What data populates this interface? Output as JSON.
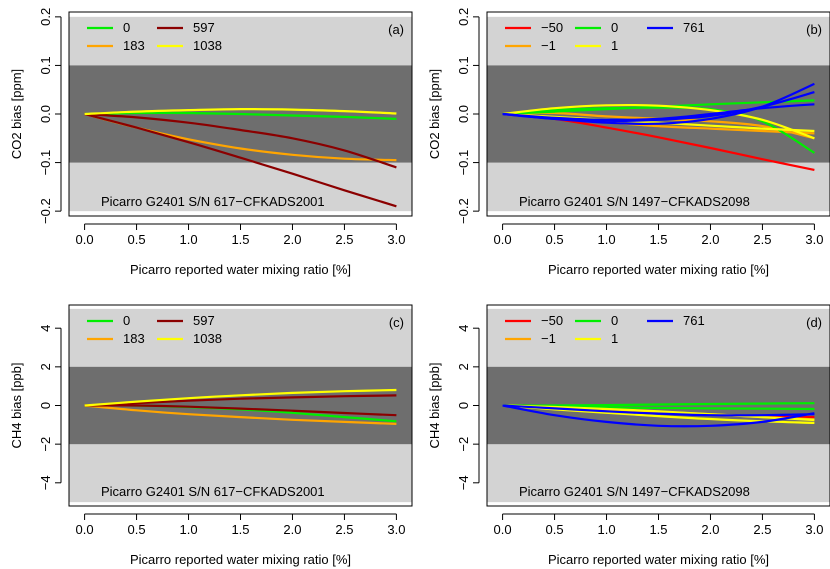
{
  "figure": {
    "panels": [
      {
        "tag": "(a)",
        "ylabel": "CO2 bias [ppm]",
        "xlabel": "Picarro reported water mixing ratio [%]",
        "annotation": "Picarro G2401 S/N 617−CFKADS2001",
        "xticks": [
          "0.0",
          "0.5",
          "1.0",
          "1.5",
          "2.0",
          "2.5",
          "3.0"
        ],
        "yticks": [
          "−0.2",
          "−0.1",
          "0.0",
          "0.1",
          "0.2"
        ],
        "legend": [
          {
            "label": "0",
            "color": "#00ee00"
          },
          {
            "label": "183",
            "color": "#ffa500"
          },
          {
            "label": "597",
            "color": "#8b0000"
          },
          {
            "label": "1038",
            "color": "#ffff00"
          }
        ]
      },
      {
        "tag": "(b)",
        "ylabel": "CO2 bias [ppm]",
        "xlabel": "Picarro reported water mixing ratio [%]",
        "annotation": "Picarro G2401 S/N 1497−CFKADS2098",
        "xticks": [
          "0.0",
          "0.5",
          "1.0",
          "1.5",
          "2.0",
          "2.5",
          "3.0"
        ],
        "yticks": [
          "−0.2",
          "−0.1",
          "0.0",
          "0.1",
          "0.2"
        ],
        "legend": [
          {
            "label": "−50",
            "color": "#ff0000"
          },
          {
            "label": "−1",
            "color": "#ffa500"
          },
          {
            "label": "0",
            "color": "#00ee00"
          },
          {
            "label": "1",
            "color": "#ffff00"
          },
          {
            "label": "761",
            "color": "#0000ff"
          }
        ]
      },
      {
        "tag": "(c)",
        "ylabel": "CH4 bias [ppb]",
        "xlabel": "Picarro reported water mixing ratio [%]",
        "annotation": "Picarro G2401 S/N 617−CFKADS2001",
        "xticks": [
          "0.0",
          "0.5",
          "1.0",
          "1.5",
          "2.0",
          "2.5",
          "3.0"
        ],
        "yticks": [
          "−4",
          "−2",
          "0",
          "2",
          "4"
        ],
        "legend": [
          {
            "label": "0",
            "color": "#00ee00"
          },
          {
            "label": "183",
            "color": "#ffa500"
          },
          {
            "label": "597",
            "color": "#8b0000"
          },
          {
            "label": "1038",
            "color": "#ffff00"
          }
        ]
      },
      {
        "tag": "(d)",
        "ylabel": "CH4 bias [ppb]",
        "xlabel": "Picarro reported water mixing ratio [%]",
        "annotation": "Picarro G2401 S/N 1497−CFKADS2098",
        "xticks": [
          "0.0",
          "0.5",
          "1.0",
          "1.5",
          "2.0",
          "2.5",
          "3.0"
        ],
        "yticks": [
          "−4",
          "−2",
          "0",
          "2",
          "4"
        ],
        "legend": [
          {
            "label": "−50",
            "color": "#ff0000"
          },
          {
            "label": "−1",
            "color": "#ffa500"
          },
          {
            "label": "0",
            "color": "#00ee00"
          },
          {
            "label": "1",
            "color": "#ffff00"
          },
          {
            "label": "761",
            "color": "#0000ff"
          }
        ]
      }
    ]
  },
  "chart_data": [
    {
      "type": "line",
      "panel": "(a)",
      "ylabel": "CO2 bias [ppm]",
      "xlabel": "Picarro reported water mixing ratio [%]",
      "xlim": [
        -0.15,
        3.15
      ],
      "ylim": [
        -0.21,
        0.21
      ],
      "background_bands": {
        "inner": [
          -0.1,
          0.1
        ],
        "outer": [
          -0.2,
          0.2
        ],
        "inner_color": "#6e6e6e",
        "outer_color": "#d3d3d3"
      },
      "x": [
        0,
        0.5,
        1,
        1.5,
        2,
        2.5,
        3
      ],
      "series": [
        {
          "name": "0",
          "color": "#00ee00",
          "values": [
            0,
            0.002,
            0.002,
            0.0,
            -0.003,
            -0.006,
            -0.01
          ]
        },
        {
          "name": "183",
          "color": "#ffa500",
          "values": [
            0,
            -0.028,
            -0.052,
            -0.071,
            -0.084,
            -0.092,
            -0.095
          ]
        },
        {
          "name": "597",
          "color": "#8b0000",
          "values": [
            0,
            -0.028,
            -0.058,
            -0.09,
            -0.123,
            -0.157,
            -0.19
          ]
        },
        {
          "name": "597",
          "color": "#8b0000",
          "values": [
            0,
            -0.007,
            -0.018,
            -0.033,
            -0.05,
            -0.075,
            -0.11
          ]
        },
        {
          "name": "1038",
          "color": "#ffff00",
          "values": [
            0,
            0.005,
            0.008,
            0.01,
            0.009,
            0.006,
            0.001
          ]
        }
      ]
    },
    {
      "type": "line",
      "panel": "(b)",
      "ylabel": "CO2 bias [ppm]",
      "xlabel": "Picarro reported water mixing ratio [%]",
      "xlim": [
        -0.15,
        3.15
      ],
      "ylim": [
        -0.21,
        0.21
      ],
      "background_bands": {
        "inner": [
          -0.1,
          0.1
        ],
        "outer": [
          -0.2,
          0.2
        ],
        "inner_color": "#6e6e6e",
        "outer_color": "#d3d3d3"
      },
      "x": [
        0,
        0.5,
        1,
        1.5,
        2,
        2.5,
        3
      ],
      "series": [
        {
          "name": "−50",
          "color": "#ff0000",
          "values": [
            0,
            -0.01,
            -0.028,
            -0.048,
            -0.07,
            -0.093,
            -0.115
          ]
        },
        {
          "name": "−1",
          "color": "#ffa500",
          "values": [
            0,
            0.002,
            -0.005,
            -0.01,
            -0.015,
            -0.025,
            -0.05
          ]
        },
        {
          "name": "−1",
          "color": "#ffa500",
          "values": [
            0,
            -0.008,
            -0.017,
            -0.025,
            -0.03,
            -0.035,
            -0.04
          ]
        },
        {
          "name": "0",
          "color": "#00ee00",
          "values": [
            0,
            0.008,
            0.012,
            0.013,
            0.01,
            -0.015,
            -0.08
          ]
        },
        {
          "name": "0",
          "color": "#00ee00",
          "values": [
            0,
            0.005,
            0.01,
            0.015,
            0.02,
            0.024,
            0.028
          ]
        },
        {
          "name": "1",
          "color": "#ffff00",
          "values": [
            0,
            0.012,
            0.018,
            0.017,
            0.008,
            -0.012,
            -0.05
          ]
        },
        {
          "name": "1",
          "color": "#ffff00",
          "values": [
            0,
            -0.006,
            -0.012,
            -0.018,
            -0.024,
            -0.03,
            -0.035
          ]
        },
        {
          "name": "761",
          "color": "#0000ff",
          "values": [
            0,
            -0.01,
            -0.018,
            -0.02,
            -0.01,
            0.015,
            0.062
          ]
        },
        {
          "name": "761",
          "color": "#0000ff",
          "values": [
            0,
            -0.01,
            -0.014,
            -0.012,
            -0.004,
            0.015,
            0.045
          ]
        },
        {
          "name": "761",
          "color": "#0000ff",
          "values": [
            0,
            -0.008,
            -0.012,
            -0.01,
            0.0,
            0.012,
            0.02
          ]
        }
      ]
    },
    {
      "type": "line",
      "panel": "(c)",
      "ylabel": "CH4 bias [ppb]",
      "xlabel": "Picarro reported water mixing ratio [%]",
      "xlim": [
        -0.15,
        3.15
      ],
      "ylim": [
        -5.2,
        5.2
      ],
      "background_bands": {
        "inner": [
          -2,
          2
        ],
        "outer": [
          -5,
          5
        ],
        "inner_color": "#6e6e6e",
        "outer_color": "#d3d3d3"
      },
      "x": [
        0,
        0.5,
        1,
        1.5,
        2,
        2.5,
        3
      ],
      "series": [
        {
          "name": "0",
          "color": "#00ee00",
          "values": [
            0,
            0.0,
            -0.08,
            -0.2,
            -0.38,
            -0.6,
            -0.82
          ]
        },
        {
          "name": "183",
          "color": "#ffa500",
          "values": [
            0,
            -0.25,
            -0.45,
            -0.6,
            -0.74,
            -0.85,
            -0.95
          ]
        },
        {
          "name": "597",
          "color": "#8b0000",
          "values": [
            0,
            0.12,
            0.25,
            0.35,
            0.42,
            0.48,
            0.52
          ]
        },
        {
          "name": "597",
          "color": "#8b0000",
          "values": [
            0,
            0.0,
            -0.06,
            -0.16,
            -0.27,
            -0.39,
            -0.5
          ]
        },
        {
          "name": "1038",
          "color": "#ffff00",
          "values": [
            0,
            0.2,
            0.38,
            0.53,
            0.65,
            0.74,
            0.8
          ]
        }
      ]
    },
    {
      "type": "line",
      "panel": "(d)",
      "ylabel": "CH4 bias [ppb]",
      "xlabel": "Picarro reported water mixing ratio [%]",
      "xlim": [
        -0.15,
        3.15
      ],
      "ylim": [
        -5.2,
        5.2
      ],
      "background_bands": {
        "inner": [
          -2,
          2
        ],
        "outer": [
          -5,
          5
        ],
        "inner_color": "#6e6e6e",
        "outer_color": "#d3d3d3"
      },
      "x": [
        0,
        0.5,
        1,
        1.5,
        2,
        2.5,
        3
      ],
      "series": [
        {
          "name": "−50",
          "color": "#ff0000",
          "values": [
            0,
            -0.12,
            -0.26,
            -0.38,
            -0.48,
            -0.56,
            -0.6
          ]
        },
        {
          "name": "−1",
          "color": "#ffa500",
          "values": [
            0,
            -0.1,
            -0.2,
            -0.32,
            -0.45,
            -0.6,
            -0.72
          ]
        },
        {
          "name": "0",
          "color": "#00ee00",
          "values": [
            0,
            0.0,
            0.02,
            0.05,
            0.08,
            0.1,
            0.12
          ]
        },
        {
          "name": "0",
          "color": "#00ee00",
          "values": [
            0,
            -0.05,
            -0.1,
            -0.13,
            -0.15,
            -0.16,
            -0.18
          ]
        },
        {
          "name": "1",
          "color": "#ffff00",
          "values": [
            0,
            -0.2,
            -0.38,
            -0.55,
            -0.7,
            -0.82,
            -0.9
          ]
        },
        {
          "name": "1",
          "color": "#ffff00",
          "values": [
            0,
            -0.08,
            -0.18,
            -0.3,
            -0.45,
            -0.6,
            -0.75
          ]
        },
        {
          "name": "761",
          "color": "#0000ff",
          "values": [
            0,
            -0.5,
            -0.85,
            -1.05,
            -1.05,
            -0.85,
            -0.4
          ]
        },
        {
          "name": "761",
          "color": "#0000ff",
          "values": [
            0,
            -0.15,
            -0.3,
            -0.42,
            -0.5,
            -0.5,
            -0.45
          ]
        }
      ]
    }
  ]
}
